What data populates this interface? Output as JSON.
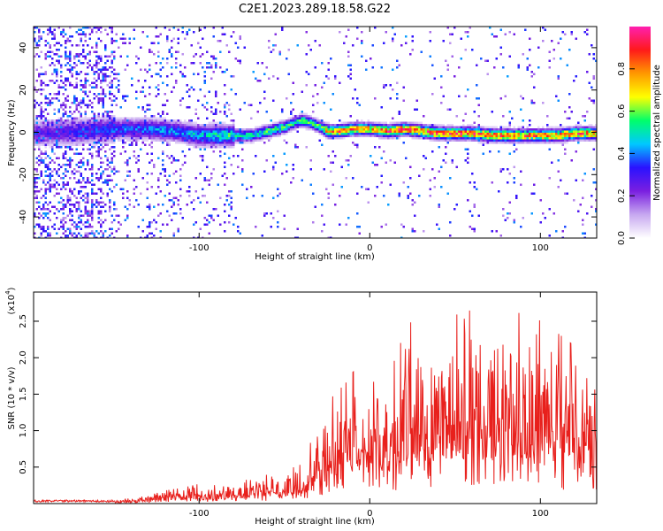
{
  "chart_data": [
    {
      "type": "heatmap",
      "title": "C2E1.2023.289.18.58.G22",
      "xlabel": "Height of straight line (km)",
      "ylabel": "Frequency (Hz)",
      "xlim": [
        -197,
        133
      ],
      "ylim": [
        -50,
        50
      ],
      "x_ticks": [
        "-100",
        "0",
        "100"
      ],
      "y_ticks": [
        "-40",
        "-20",
        "0",
        "20",
        "40"
      ],
      "grid": false,
      "colorbar": {
        "label": "Normalized spectral amplitude",
        "range": [
          0,
          1
        ],
        "ticks": [
          "0.0",
          "0.2",
          "0.4",
          "0.6",
          "0.8"
        ],
        "colors": [
          "#ffffff",
          "#c7a8f0",
          "#7a1fe0",
          "#2a12ff",
          "#00c8ff",
          "#00ff6a",
          "#ffff00",
          "#ff9900",
          "#ff1a1a",
          "#ff1fb0"
        ]
      },
      "ridge": {
        "x": [
          -190,
          -170,
          -150,
          -130,
          -115,
          -100,
          -90,
          -80,
          -70,
          -60,
          -50,
          -45,
          -40,
          -35,
          -30,
          -25,
          -20,
          -10,
          0,
          10,
          20,
          30,
          40,
          50,
          60,
          70,
          80,
          90,
          100,
          110,
          120,
          133
        ],
        "y": [
          0,
          1,
          2,
          2,
          1,
          -1,
          -1,
          -1,
          -1,
          1,
          3,
          5,
          6,
          5,
          3,
          1,
          1,
          2,
          2,
          1,
          2,
          1,
          0,
          0,
          0,
          -1,
          -1,
          -1,
          -1,
          -1,
          0,
          0
        ],
        "amplitude": [
          0.25,
          0.3,
          0.35,
          0.38,
          0.4,
          0.45,
          0.5,
          0.5,
          0.5,
          0.55,
          0.55,
          0.5,
          0.55,
          0.5,
          0.55,
          0.8,
          0.8,
          0.75,
          0.75,
          0.85,
          0.85,
          0.8,
          0.85,
          0.85,
          0.85,
          0.8,
          0.85,
          0.8,
          0.8,
          0.8,
          0.8,
          0.8
        ]
      }
    },
    {
      "type": "line",
      "xlabel": "Height of straight line (km)",
      "ylabel": "SNR (10 * v/v)",
      "y_multiplier_label": "(x10",
      "y_multiplier_exp": "4",
      "y_multiplier_close": ")",
      "xlim": [
        -197,
        133
      ],
      "ylim": [
        0,
        2.9
      ],
      "x_ticks": [
        "-100",
        "0",
        "100"
      ],
      "y_ticks": [
        "0.5",
        "1.0",
        "1.5",
        "2.0",
        "2.5"
      ],
      "grid": false,
      "color": "#e8201c",
      "series": [
        {
          "x": [
            -197,
            -190,
            -180,
            -170,
            -160,
            -150,
            -140,
            -130,
            -120,
            -110,
            -100,
            -90,
            -80,
            -70,
            -60,
            -50,
            -40,
            -35,
            -30,
            -25,
            -20,
            -15,
            -10,
            -5,
            0,
            5,
            10,
            15,
            20,
            25,
            30,
            35,
            40,
            45,
            50,
            55,
            60,
            65,
            70,
            75,
            80,
            85,
            90,
            95,
            100,
            105,
            110,
            115,
            120,
            125,
            130,
            133
          ],
          "y": [
            0.05,
            0.02,
            0.02,
            0.02,
            0.02,
            0.03,
            0.04,
            0.06,
            0.1,
            0.12,
            0.15,
            0.14,
            0.12,
            0.2,
            0.22,
            0.25,
            0.3,
            0.45,
            0.7,
            0.75,
            0.85,
            0.9,
            1.0,
            1.05,
            0.95,
            0.9,
            1.0,
            1.1,
            1.3,
            1.4,
            1.5,
            1.45,
            1.6,
            1.55,
            1.45,
            1.4,
            1.5,
            1.5,
            1.45,
            1.4,
            1.45,
            1.5,
            1.4,
            1.35,
            1.4,
            1.45,
            1.3,
            1.25,
            1.2,
            1.0,
            0.9,
            0.85
          ]
        }
      ]
    }
  ]
}
